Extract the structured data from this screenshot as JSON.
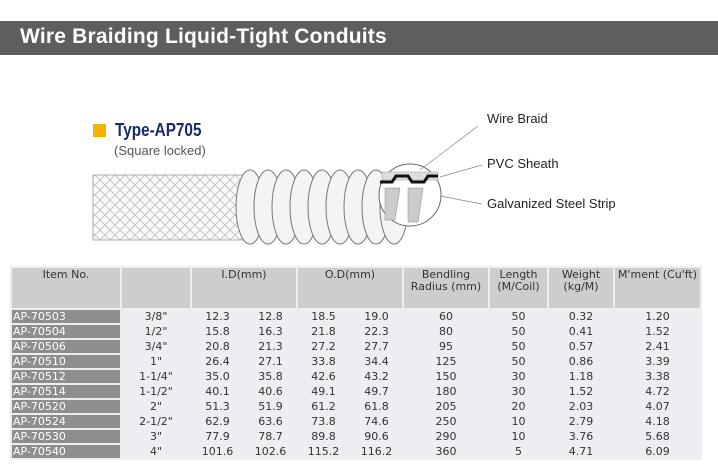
{
  "title": "Wire Braiding Liquid-Tight Conduits",
  "product": {
    "type_label": "Type-AP705",
    "subtitle": "(Square locked)",
    "callouts": [
      "Wire Braid",
      "PVC Sheath",
      "Galvanized Steel Strip"
    ]
  },
  "table": {
    "headers": {
      "item": "Item No.",
      "size": "",
      "id": "I.D(mm)",
      "od": "O.D(mm)",
      "bend": "Bendling Radius (mm)",
      "length": "Length (M/Coil)",
      "weight": "Weight (kg/M)",
      "moment": "M'ment (Cu'ft)"
    },
    "rows": [
      [
        "AP-70503",
        "3/8\"",
        "12.3",
        "12.8",
        "18.5",
        "19.0",
        "60",
        "50",
        "0.32",
        "1.20"
      ],
      [
        "AP-70504",
        "1/2\"",
        "15.8",
        "16.3",
        "21.8",
        "22.3",
        "80",
        "50",
        "0.41",
        "1.52"
      ],
      [
        "AP-70506",
        "3/4\"",
        "20.8",
        "21.3",
        "27.2",
        "27.7",
        "95",
        "50",
        "0.57",
        "2.41"
      ],
      [
        "AP-70510",
        "1\"",
        "26.4",
        "27.1",
        "33.8",
        "34.4",
        "125",
        "50",
        "0.86",
        "3.39"
      ],
      [
        "AP-70512",
        "1-1/4\"",
        "35.0",
        "35.8",
        "42.6",
        "43.2",
        "150",
        "30",
        "1.18",
        "3.38"
      ],
      [
        "AP-70514",
        "1-1/2\"",
        "40.1",
        "40.6",
        "49.1",
        "49.7",
        "180",
        "30",
        "1.52",
        "4.72"
      ],
      [
        "AP-70520",
        "2\"",
        "51.3",
        "51.9",
        "61.2",
        "61.8",
        "205",
        "20",
        "2.03",
        "4.07"
      ],
      [
        "AP-70524",
        "2-1/2\"",
        "62.9",
        "63.6",
        "73.8",
        "74.6",
        "250",
        "10",
        "2.79",
        "4.18"
      ],
      [
        "AP-70530",
        "3\"",
        "77.9",
        "78.7",
        "89.8",
        "90.6",
        "290",
        "10",
        "3.76",
        "5.68"
      ],
      [
        "AP-70540",
        "4\"",
        "101.6",
        "102.6",
        "115.2",
        "116.2",
        "360",
        "5",
        "4.71",
        "6.09"
      ]
    ]
  }
}
